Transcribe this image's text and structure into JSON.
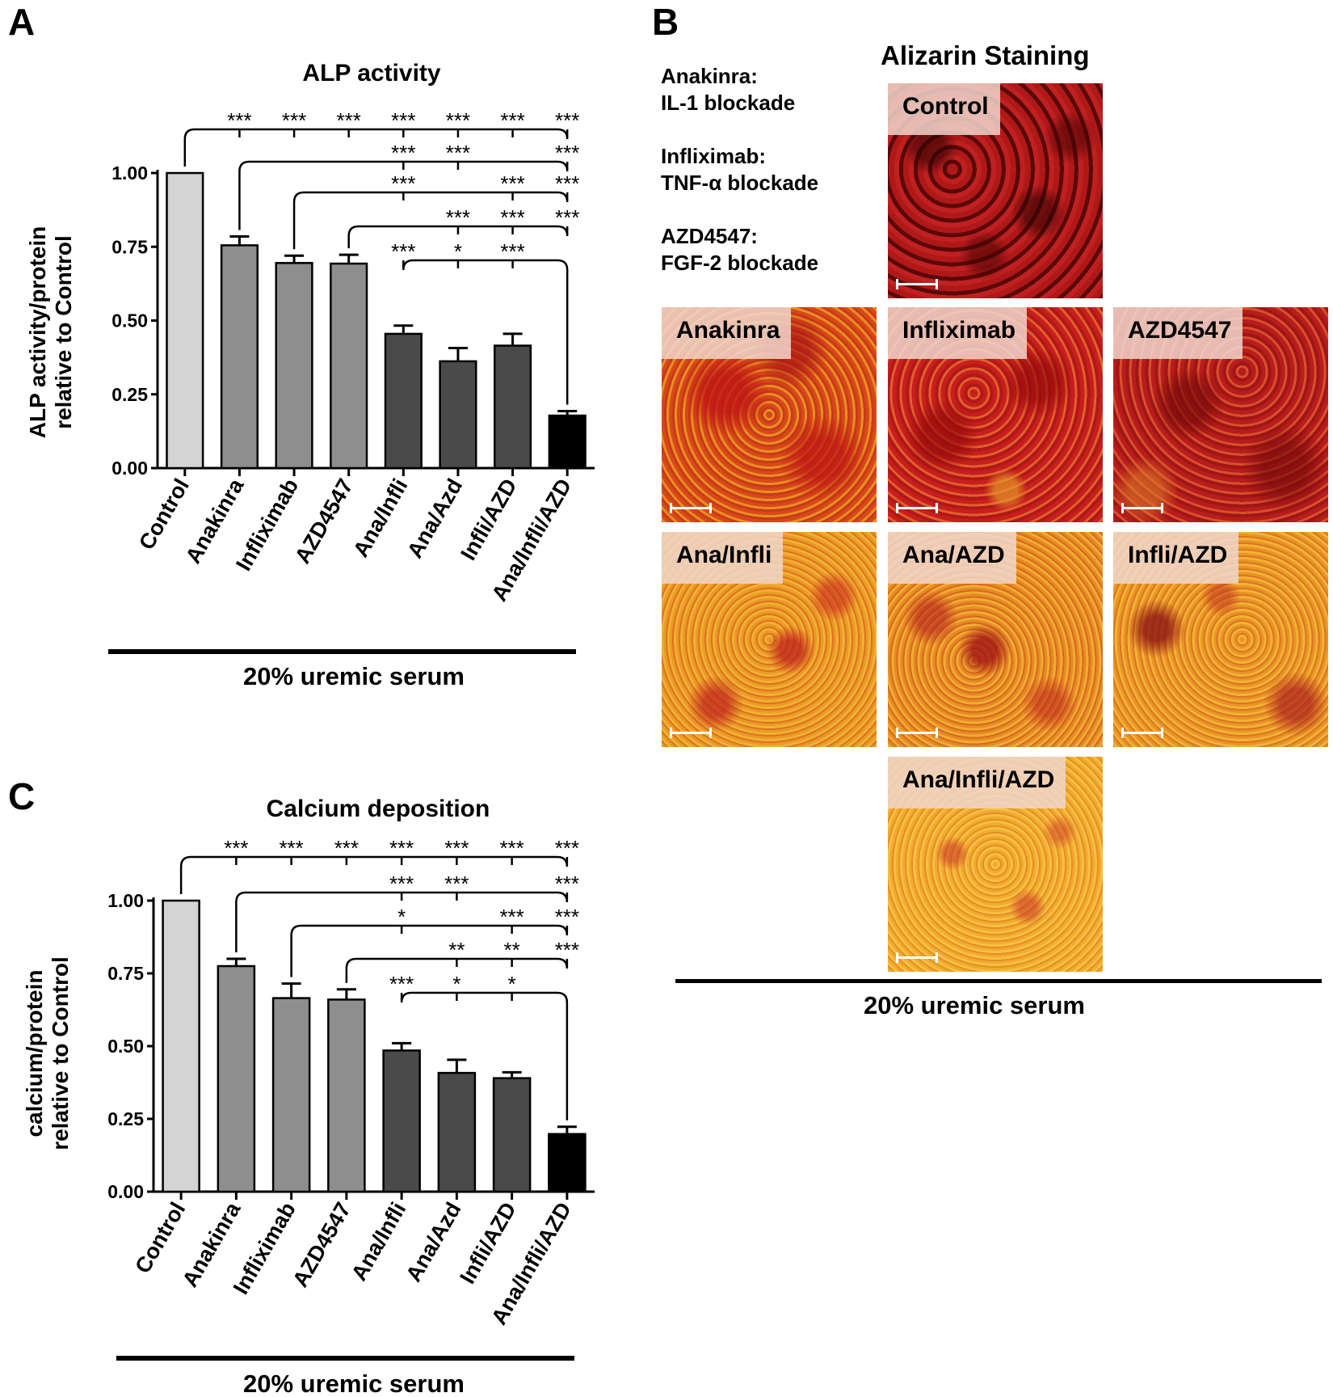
{
  "panels": {
    "a": {
      "letter": "A",
      "title": "ALP activity",
      "ylabel_line1": "ALP activity/protein",
      "ylabel_line2": "relative to Control",
      "group_label": "20% uremic serum"
    },
    "b": {
      "letter": "B",
      "title": "Alizarin Staining",
      "group_label": "20% uremic serum"
    },
    "c": {
      "letter": "C",
      "title": "Calcium deposition",
      "ylabel_line1": "calcium/protein",
      "ylabel_line2": "relative to Control",
      "group_label": "20% uremic serum"
    }
  },
  "legend_b": [
    {
      "drug": "Anakinra:",
      "target": "IL-1 blockade"
    },
    {
      "drug": "Infliximab:",
      "target": "TNF-α blockade"
    },
    {
      "drug": "AZD4547:",
      "target": "FGF-2 blockade"
    }
  ],
  "micrographs": [
    {
      "label": "Control"
    },
    {
      "label": "Anakinra"
    },
    {
      "label": "Infliximab"
    },
    {
      "label": "AZD4547"
    },
    {
      "label": "Ana/Infli"
    },
    {
      "label": "Ana/AZD"
    },
    {
      "label": "Infli/AZD"
    },
    {
      "label": "Ana/Infli/AZD"
    }
  ],
  "colors": {
    "control": "#d4d4d4",
    "single": "#8e8e8e",
    "double": "#4a4a4a",
    "triple": "#000000"
  },
  "chart_data": [
    {
      "type": "bar",
      "panel": "A",
      "title": "ALP activity",
      "categories": [
        "Control",
        "Anakinra",
        "Infliximab",
        "AZD4547",
        "Ana/Infli",
        "Ana/Azd",
        "Infli/AZD",
        "Ana/Infli/AZD"
      ],
      "values": [
        1.0,
        0.755,
        0.695,
        0.693,
        0.455,
        0.362,
        0.415,
        0.178
      ],
      "errors": [
        0,
        0.03,
        0.025,
        0.03,
        0.028,
        0.045,
        0.04,
        0.015
      ],
      "bar_groups": [
        "control",
        "single",
        "single",
        "single",
        "double",
        "double",
        "double",
        "triple"
      ],
      "ylim": [
        0,
        1.0
      ],
      "yticks": [
        "0.00",
        "0.25",
        "0.50",
        "0.75",
        "1.00"
      ],
      "ylabel": "ALP activity/protein relative to Control",
      "xlabel": "20% uremic serum",
      "significance": [
        {
          "from": 0,
          "marks": [
            "***",
            "***",
            "***",
            "***",
            "***",
            "***",
            "***"
          ]
        },
        {
          "from": 1,
          "marks": [
            "",
            "",
            "***",
            "***",
            "",
            "***"
          ]
        },
        {
          "from": 2,
          "marks": [
            "",
            "***",
            "",
            "***",
            "***"
          ]
        },
        {
          "from": 3,
          "marks": [
            "",
            "***",
            "***",
            "***"
          ]
        },
        {
          "from": 7,
          "marks": [
            "***",
            "*",
            "***"
          ]
        }
      ]
    },
    {
      "type": "bar",
      "panel": "C",
      "title": "Calcium deposition",
      "categories": [
        "Control",
        "Anakinra",
        "Infliximab",
        "AZD4547",
        "Ana/Infli",
        "Ana/Azd",
        "Infli/AZD",
        "Ana/Infli/AZD"
      ],
      "values": [
        1.0,
        0.775,
        0.665,
        0.66,
        0.485,
        0.408,
        0.39,
        0.198
      ],
      "errors": [
        0,
        0.025,
        0.05,
        0.035,
        0.025,
        0.045,
        0.02,
        0.025
      ],
      "bar_groups": [
        "control",
        "single",
        "single",
        "single",
        "double",
        "double",
        "double",
        "triple"
      ],
      "ylim": [
        0,
        1.0
      ],
      "yticks": [
        "0.00",
        "0.25",
        "0.50",
        "0.75",
        "1.00"
      ],
      "ylabel": "calcium/protein relative to Control",
      "xlabel": "20% uremic serum",
      "significance": [
        {
          "from": 0,
          "marks": [
            "***",
            "***",
            "***",
            "***",
            "***",
            "***",
            "***"
          ]
        },
        {
          "from": 1,
          "marks": [
            "",
            "",
            "***",
            "***",
            "",
            "***"
          ]
        },
        {
          "from": 2,
          "marks": [
            "",
            "*",
            "",
            "***",
            "***"
          ]
        },
        {
          "from": 3,
          "marks": [
            "",
            "**",
            "**",
            "***"
          ]
        },
        {
          "from": 7,
          "marks": [
            "***",
            "*",
            "*"
          ]
        }
      ]
    }
  ]
}
